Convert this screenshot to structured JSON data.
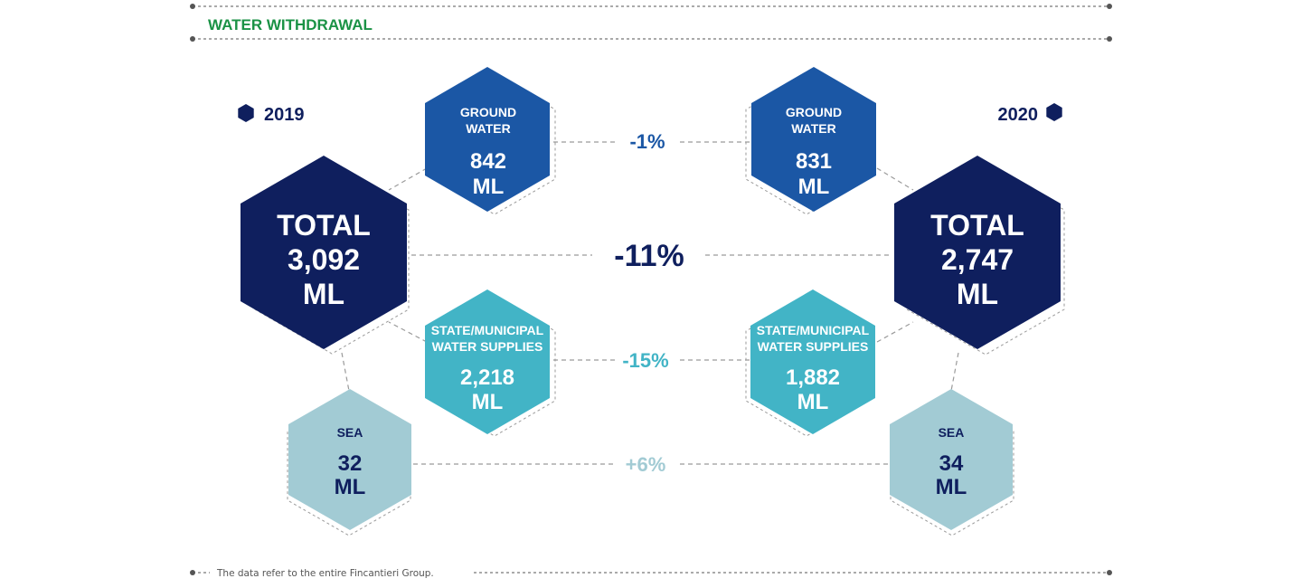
{
  "header": {
    "title": "WATER WITHDRAWAL"
  },
  "years": {
    "left": "2019",
    "right": "2020"
  },
  "rows": {
    "ground": {
      "label_line1": "GROUND",
      "label_line2": "WATER",
      "left_value": "842",
      "right_value": "831",
      "unit": "ML",
      "change": "-1%"
    },
    "total": {
      "label": "TOTAL",
      "left_value": "3,092",
      "right_value": "2,747",
      "unit": "ML",
      "change": "-11%"
    },
    "state": {
      "label_line1": "STATE/MUNICIPAL",
      "label_line2": "WATER SUPPLIES",
      "left_value": "2,218",
      "right_value": "1,882",
      "unit": "ML",
      "change": "-15%"
    },
    "sea": {
      "label": "SEA",
      "left_value": "32",
      "right_value": "34",
      "unit": "ML",
      "change": "+6%"
    }
  },
  "footer": {
    "note": "The data refer to the entire Fincantieri Group."
  },
  "colors": {
    "title_green": "#1a9245",
    "navy": "#0f1f5e",
    "royal_blue": "#1b57a5",
    "teal": "#42b4c6",
    "light_teal": "#a2cbd4",
    "dash_gray": "#9a9a9a",
    "rule_gray": "#555555"
  }
}
